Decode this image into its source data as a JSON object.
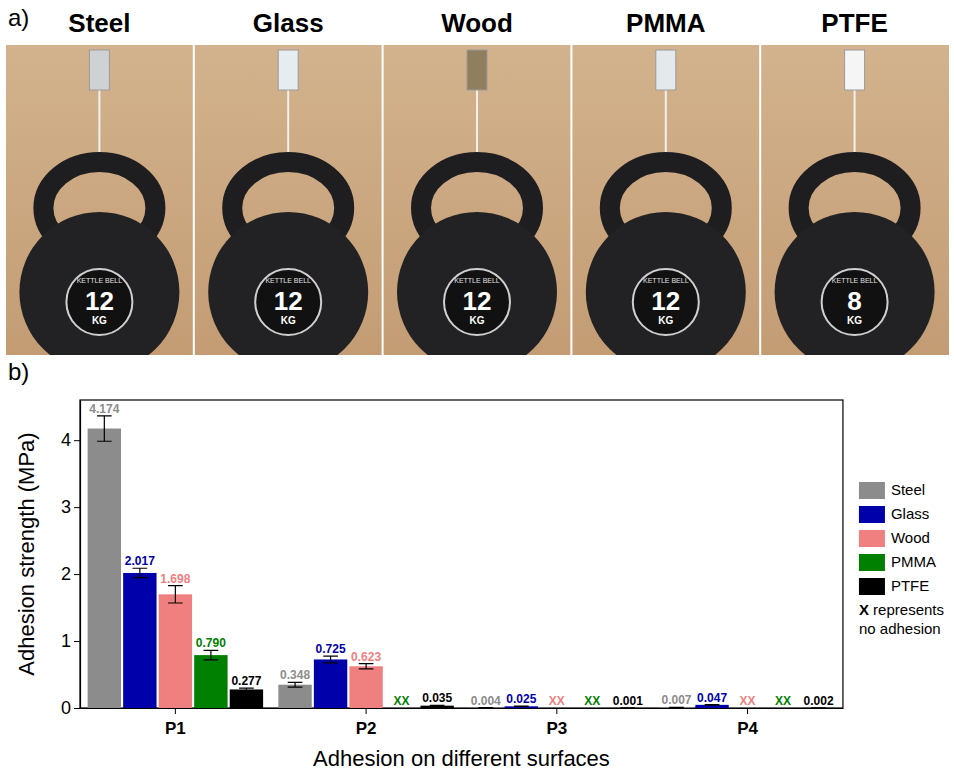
{
  "photo_panel": {
    "label": "a)",
    "surfaces": [
      "Steel",
      "Glass",
      "Wood",
      "PMMA",
      "PTFE"
    ],
    "weights": [
      12,
      12,
      12,
      12,
      8
    ],
    "unit": "KG",
    "brand": "KETTLE BELL"
  },
  "chart_data": {
    "type": "bar",
    "panel_label": "b)",
    "x_label": "Adhesion on different surfaces",
    "y_label": "Adhesion strength (MPa)",
    "categories": [
      "P1",
      "P2",
      "P3",
      "P4"
    ],
    "series": [
      {
        "name": "Steel",
        "color": "#8c8c8c",
        "values": [
          4.174,
          0.348,
          0.004,
          0.007
        ],
        "errors": [
          0.19,
          0.035,
          0.001,
          0.001
        ],
        "value_labels": [
          "4.174",
          "0.348",
          "0.004",
          "0.007"
        ]
      },
      {
        "name": "Glass",
        "color": "#0000aa",
        "values": [
          2.017,
          0.725,
          0.025,
          0.047
        ],
        "errors": [
          0.07,
          0.05,
          0.002,
          0.003
        ],
        "value_labels": [
          "2.017",
          "0.725",
          "0.025",
          "0.047"
        ]
      },
      {
        "name": "Wood",
        "color": "#f08080",
        "values": [
          1.698,
          0.623,
          null,
          null
        ],
        "errors": [
          0.13,
          0.04,
          null,
          null
        ],
        "value_labels": [
          "1.698",
          "0.623",
          "XX",
          "XX"
        ]
      },
      {
        "name": "PMMA",
        "color": "#008000",
        "values": [
          0.79,
          null,
          null,
          null
        ],
        "errors": [
          0.07,
          null,
          null,
          null
        ],
        "value_labels": [
          "0.790",
          "XX",
          "XX",
          "XX"
        ]
      },
      {
        "name": "PTFE",
        "color": "#000000",
        "values": [
          0.277,
          0.035,
          0.001,
          0.002
        ],
        "errors": [
          0.02,
          0.005,
          0.0005,
          0.0005
        ],
        "value_labels": [
          "0.277",
          "0.035",
          "0.001",
          "0.002"
        ]
      }
    ],
    "annotation": "X represents no adhesion",
    "ylim": [
      0,
      4.6
    ],
    "yticks": [
      0,
      1,
      2,
      3,
      4
    ],
    "data_labels": true,
    "legend": "right",
    "grid": false
  }
}
